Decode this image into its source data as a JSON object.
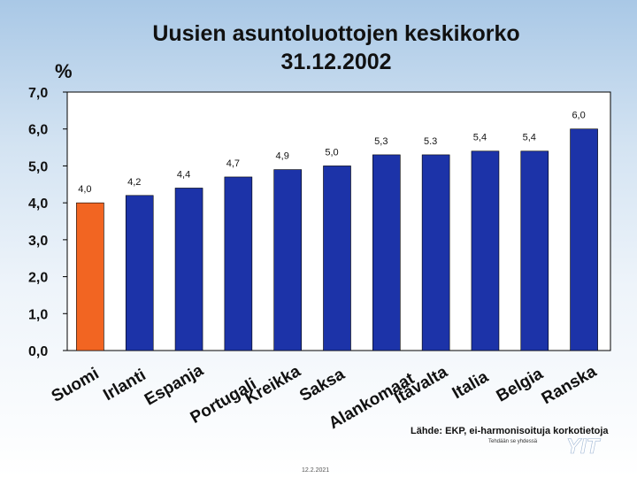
{
  "title_line1": "Uusien asuntoluottojen keskikorko",
  "title_line2": "31.12.2002",
  "unit_label": "%",
  "source_text": "Lähde: EKP, ei-harmonisoituja korkotietoja",
  "made_text": "Tehdään se yhdessä",
  "date_text": "12.2.2021",
  "logo_text": "YIT",
  "chart_data": {
    "type": "bar",
    "title": "Uusien asuntoluottojen keskikorko 31.12.2002",
    "ylabel": "%",
    "xlabel": "",
    "ylim": [
      0,
      7
    ],
    "yticks": [
      "0,0",
      "1,0",
      "2,0",
      "3,0",
      "4,0",
      "5,0",
      "6,0",
      "7,0"
    ],
    "categories": [
      "Suomi",
      "Irlanti",
      "Espanja",
      "Portugali",
      "Kreikka",
      "Saksa",
      "Alankomaat",
      "Itävalta",
      "Italia",
      "Belgia",
      "Ranska"
    ],
    "values": [
      4.0,
      4.2,
      4.4,
      4.7,
      4.9,
      5.0,
      5.3,
      5.3,
      5.4,
      5.4,
      6.0
    ],
    "value_labels": [
      "4,0",
      "4,2",
      "4,4",
      "4,7",
      "4,9",
      "5,0",
      "5,3",
      "5.3",
      "5,4",
      "5,4",
      "6,0"
    ],
    "colors": {
      "highlight": "#f26522",
      "bar": "#1c33a8",
      "plot_bg": "#ffffff",
      "border": "#000000"
    },
    "highlight_index": 0
  }
}
